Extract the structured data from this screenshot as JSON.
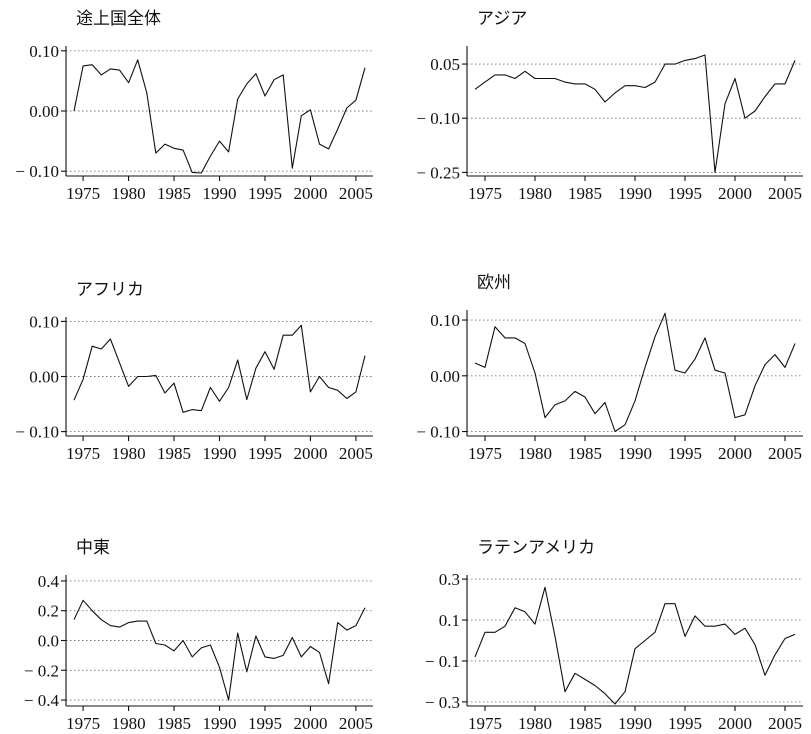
{
  "chart_data": [
    {
      "type": "line",
      "title": "途上国全体",
      "xlabel": "",
      "ylabel": "",
      "xlim": [
        1974,
        2006
      ],
      "ylim": [
        -0.108,
        0.108
      ],
      "y_ticks": [
        0.1,
        0.0,
        -0.1
      ],
      "y_tick_labels": [
        "0.10",
        "0.00",
        "− 0.10"
      ],
      "x_ticks": [
        1975,
        1980,
        1985,
        1990,
        1995,
        2000,
        2005
      ],
      "grid": "horizontal dotted at tick values",
      "x": [
        1974,
        1975,
        1976,
        1977,
        1978,
        1979,
        1980,
        1981,
        1982,
        1983,
        1984,
        1985,
        1986,
        1987,
        1988,
        1989,
        1990,
        1991,
        1992,
        1993,
        1994,
        1995,
        1996,
        1997,
        1998,
        1999,
        2000,
        2001,
        2002,
        2003,
        2004,
        2005,
        2006
      ],
      "values": [
        0.0,
        0.075,
        0.077,
        0.06,
        0.07,
        0.068,
        0.047,
        0.085,
        0.03,
        -0.07,
        -0.055,
        -0.062,
        -0.065,
        -0.102,
        -0.103,
        -0.075,
        -0.05,
        -0.068,
        0.02,
        0.045,
        0.062,
        0.025,
        0.052,
        0.06,
        -0.095,
        -0.008,
        0.002,
        -0.055,
        -0.063,
        -0.03,
        0.005,
        0.018,
        0.072
      ]
    },
    {
      "type": "line",
      "title": "アジア",
      "xlabel": "",
      "ylabel": "",
      "xlim": [
        1974,
        2006
      ],
      "ylim": [
        -0.26,
        0.1
      ],
      "y_ticks": [
        0.05,
        -0.1,
        -0.25
      ],
      "y_tick_labels": [
        "0.05",
        "− 0.10",
        "− 0.25"
      ],
      "x_ticks": [
        1975,
        1980,
        1985,
        1990,
        1995,
        2000,
        2005
      ],
      "grid": "horizontal dotted at tick values",
      "x": [
        1974,
        1975,
        1976,
        1977,
        1978,
        1979,
        1980,
        1981,
        1982,
        1983,
        1984,
        1985,
        1986,
        1987,
        1988,
        1989,
        1990,
        1991,
        1992,
        1993,
        1994,
        1995,
        1996,
        1997,
        1998,
        1999,
        2000,
        2001,
        2002,
        2003,
        2004,
        2005,
        2006
      ],
      "values": [
        -0.02,
        0.0,
        0.02,
        0.02,
        0.01,
        0.03,
        0.01,
        0.01,
        0.01,
        0.0,
        -0.005,
        -0.005,
        -0.02,
        -0.055,
        -0.03,
        -0.01,
        -0.01,
        -0.015,
        0.0,
        0.05,
        0.05,
        0.06,
        0.065,
        0.075,
        -0.25,
        -0.06,
        0.01,
        -0.1,
        -0.08,
        -0.04,
        -0.005,
        -0.005,
        0.06
      ]
    },
    {
      "type": "line",
      "title": "アフリカ",
      "xlabel": "",
      "ylabel": "",
      "xlim": [
        1974,
        2006
      ],
      "ylim": [
        -0.108,
        0.108
      ],
      "y_ticks": [
        0.1,
        0.0,
        -0.1
      ],
      "y_tick_labels": [
        "0.10",
        "0.00",
        "− 0.10"
      ],
      "x_ticks": [
        1975,
        1980,
        1985,
        1990,
        1995,
        2000,
        2005
      ],
      "grid": "horizontal dotted at tick values",
      "x": [
        1974,
        1975,
        1976,
        1977,
        1978,
        1979,
        1980,
        1981,
        1982,
        1983,
        1984,
        1985,
        1986,
        1987,
        1988,
        1989,
        1990,
        1991,
        1992,
        1993,
        1994,
        1995,
        1996,
        1997,
        1998,
        1999,
        2000,
        2001,
        2002,
        2003,
        2004,
        2005,
        2006
      ],
      "values": [
        -0.043,
        -0.005,
        0.055,
        0.05,
        0.068,
        0.025,
        -0.018,
        0.0,
        0.0,
        0.002,
        -0.03,
        -0.012,
        -0.065,
        -0.06,
        -0.062,
        -0.02,
        -0.045,
        -0.02,
        0.03,
        -0.042,
        0.015,
        0.045,
        0.013,
        0.075,
        0.075,
        0.093,
        -0.028,
        0.0,
        -0.02,
        -0.025,
        -0.04,
        -0.028,
        0.038
      ]
    },
    {
      "type": "line",
      "title": "欧州",
      "xlabel": "",
      "ylabel": "",
      "xlim": [
        1974,
        2006
      ],
      "ylim": [
        -0.108,
        0.118
      ],
      "y_ticks": [
        0.1,
        0.0,
        -0.1
      ],
      "y_tick_labels": [
        "0.10",
        "0.00",
        "− 0.10"
      ],
      "x_ticks": [
        1975,
        1980,
        1985,
        1990,
        1995,
        2000,
        2005
      ],
      "grid": "horizontal dotted at tick values",
      "x": [
        1974,
        1975,
        1976,
        1977,
        1978,
        1979,
        1980,
        1981,
        1982,
        1983,
        1984,
        1985,
        1986,
        1987,
        1988,
        1989,
        1990,
        1991,
        1992,
        1993,
        1994,
        1995,
        1996,
        1997,
        1998,
        1999,
        2000,
        2001,
        2002,
        2003,
        2004,
        2005,
        2006
      ],
      "values": [
        0.023,
        0.015,
        0.088,
        0.068,
        0.068,
        0.058,
        0.005,
        -0.075,
        -0.052,
        -0.045,
        -0.028,
        -0.038,
        -0.068,
        -0.048,
        -0.1,
        -0.088,
        -0.045,
        0.015,
        0.07,
        0.112,
        0.01,
        0.005,
        0.03,
        0.068,
        0.01,
        0.005,
        -0.075,
        -0.07,
        -0.018,
        0.02,
        0.038,
        0.015,
        0.058
      ]
    },
    {
      "type": "line",
      "title": "中東",
      "xlabel": "",
      "ylabel": "",
      "xlim": [
        1974,
        2006
      ],
      "ylim": [
        -0.44,
        0.44
      ],
      "y_ticks": [
        0.4,
        0.2,
        0.0,
        -0.2,
        -0.4
      ],
      "y_tick_labels": [
        "0.4",
        "0.2",
        "0.0",
        "− 0.2",
        "− 0.4"
      ],
      "x_ticks": [
        1975,
        1980,
        1985,
        1990,
        1995,
        2000,
        2005
      ],
      "grid": "horizontal dotted at tick values",
      "x": [
        1974,
        1975,
        1976,
        1977,
        1978,
        1979,
        1980,
        1981,
        1982,
        1983,
        1984,
        1985,
        1986,
        1987,
        1988,
        1989,
        1990,
        1991,
        1992,
        1993,
        1994,
        1995,
        1996,
        1997,
        1998,
        1999,
        2000,
        2001,
        2002,
        2003,
        2004,
        2005,
        2006
      ],
      "values": [
        0.14,
        0.27,
        0.2,
        0.14,
        0.1,
        0.09,
        0.12,
        0.13,
        0.13,
        -0.02,
        -0.03,
        -0.07,
        0.0,
        -0.11,
        -0.05,
        -0.03,
        -0.18,
        -0.4,
        0.05,
        -0.21,
        0.03,
        -0.11,
        -0.12,
        -0.1,
        0.02,
        -0.11,
        -0.04,
        -0.08,
        -0.29,
        0.12,
        0.07,
        0.1,
        0.22
      ]
    },
    {
      "type": "line",
      "title": "ラテンアメリカ",
      "xlabel": "",
      "ylabel": "",
      "xlim": [
        1974,
        2006
      ],
      "ylim": [
        -0.32,
        0.32
      ],
      "y_ticks": [
        0.3,
        0.1,
        -0.1,
        -0.3
      ],
      "y_tick_labels": [
        "0.3",
        "0.1",
        "− 0.1",
        "− 0.3"
      ],
      "x_ticks": [
        1975,
        1980,
        1985,
        1990,
        1995,
        2000,
        2005
      ],
      "grid": "horizontal dotted at tick values",
      "x": [
        1974,
        1975,
        1976,
        1977,
        1978,
        1979,
        1980,
        1981,
        1982,
        1983,
        1984,
        1985,
        1986,
        1987,
        1988,
        1989,
        1990,
        1991,
        1992,
        1993,
        1994,
        1995,
        1996,
        1997,
        1998,
        1999,
        2000,
        2001,
        2002,
        2003,
        2004,
        2005,
        2006
      ],
      "values": [
        -0.08,
        0.04,
        0.04,
        0.07,
        0.16,
        0.14,
        0.08,
        0.26,
        0.02,
        -0.25,
        -0.16,
        -0.19,
        -0.22,
        -0.26,
        -0.31,
        -0.25,
        -0.04,
        0.0,
        0.04,
        0.18,
        0.18,
        0.02,
        0.12,
        0.07,
        0.07,
        0.08,
        0.03,
        0.06,
        -0.02,
        -0.17,
        -0.07,
        0.01,
        0.03
      ]
    }
  ]
}
